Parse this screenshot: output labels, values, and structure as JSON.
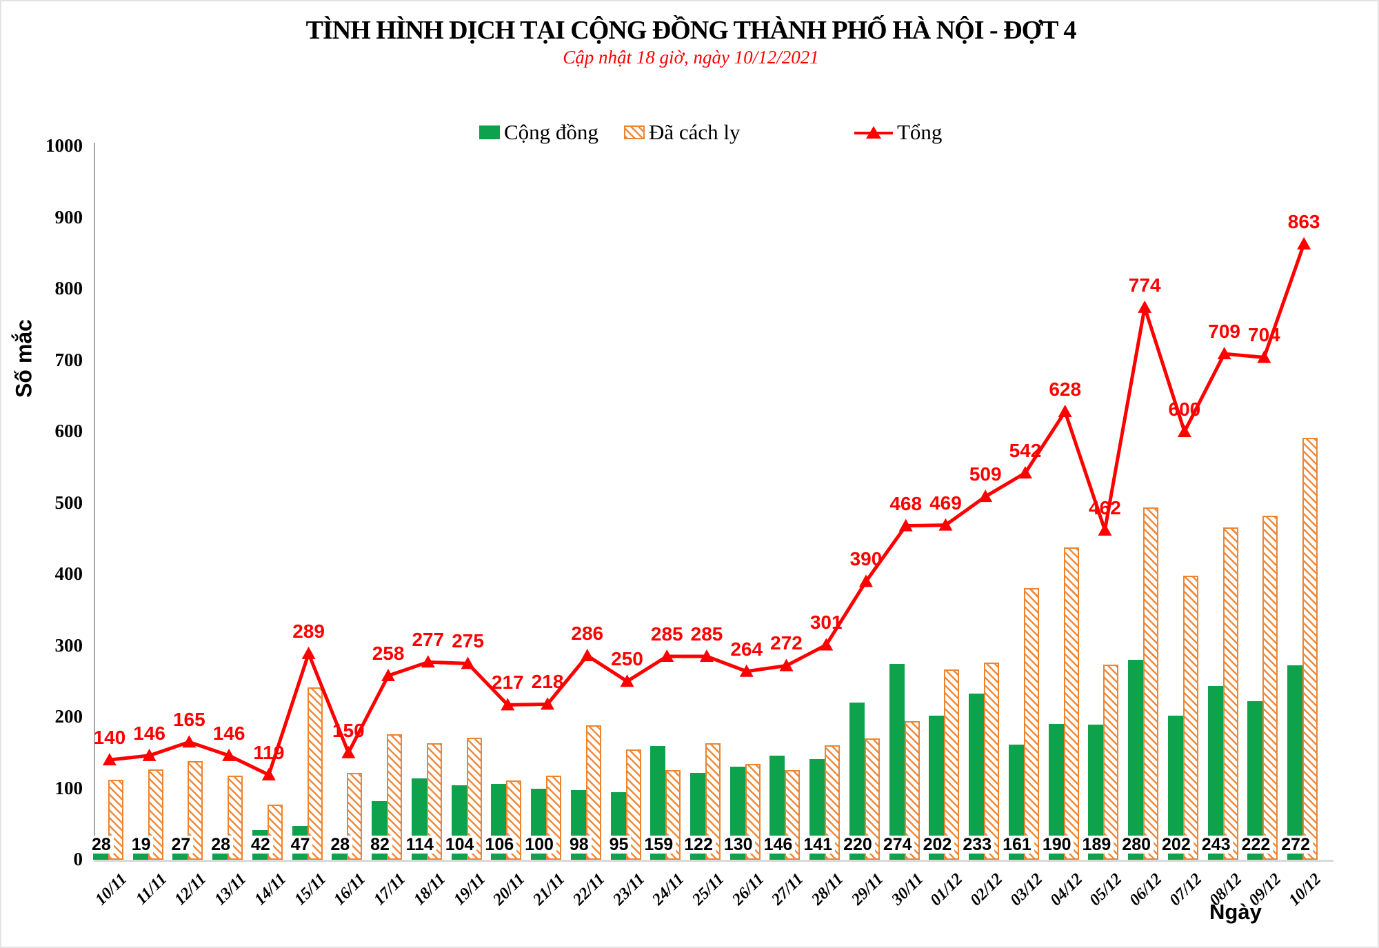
{
  "header": {
    "title": "TÌNH HÌNH DỊCH TẠI CỘNG ĐỒNG THÀNH PHỐ HÀ NỘI - ĐỢT 4",
    "subtitle": "Cập nhật 18 giờ, ngày 10/12/2021"
  },
  "legend": {
    "community": "Cộng đồng",
    "quarantined": "Đã cách ly",
    "total": "Tổng"
  },
  "y_axis": {
    "title": "Số mắc",
    "ticks": [
      0,
      100,
      200,
      300,
      400,
      500,
      600,
      700,
      800,
      900,
      1000
    ]
  },
  "x_axis": {
    "title": "Ngày"
  },
  "colors": {
    "community": "#0fa24c",
    "quarantined": "#f08a3b",
    "quarantined_border": "#ed8430",
    "total": "#ff0000"
  },
  "chart_data": {
    "type": "combo",
    "categories": [
      "10/11",
      "11/11",
      "12/11",
      "13/11",
      "14/11",
      "15/11",
      "16/11",
      "17/11",
      "18/11",
      "19/11",
      "20/11",
      "21/11",
      "22/11",
      "23/11",
      "24/11",
      "25/11",
      "26/11",
      "27/11",
      "28/11",
      "29/11",
      "30/11",
      "01/12",
      "02/12",
      "03/12",
      "04/12",
      "05/12",
      "06/12",
      "07/12",
      "08/12",
      "09/12",
      "10/12"
    ],
    "series": [
      {
        "name": "Cộng đồng",
        "type": "bar",
        "values": [
          28,
          19,
          27,
          28,
          42,
          47,
          28,
          82,
          114,
          104,
          106,
          100,
          98,
          95,
          159,
          122,
          130,
          146,
          141,
          220,
          274,
          202,
          233,
          161,
          190,
          189,
          280,
          202,
          243,
          222,
          272
        ]
      },
      {
        "name": "Đã cách ly",
        "type": "bar",
        "style": "hatched",
        "values": [
          112,
          127,
          138,
          118,
          77,
          242,
          122,
          176,
          163,
          171,
          111,
          118,
          188,
          155,
          126,
          163,
          134,
          126,
          160,
          170,
          194,
          267,
          276,
          381,
          438,
          273,
          494,
          398,
          466,
          482,
          591
        ]
      },
      {
        "name": "Tổng",
        "type": "line",
        "values": [
          140,
          146,
          165,
          146,
          119,
          289,
          150,
          258,
          277,
          275,
          217,
          218,
          286,
          250,
          285,
          285,
          264,
          272,
          301,
          390,
          468,
          469,
          509,
          542,
          628,
          462,
          774,
          600,
          709,
          704,
          863
        ]
      }
    ],
    "ylim": [
      0,
      1000
    ],
    "grid": false,
    "legend_position": "top"
  }
}
